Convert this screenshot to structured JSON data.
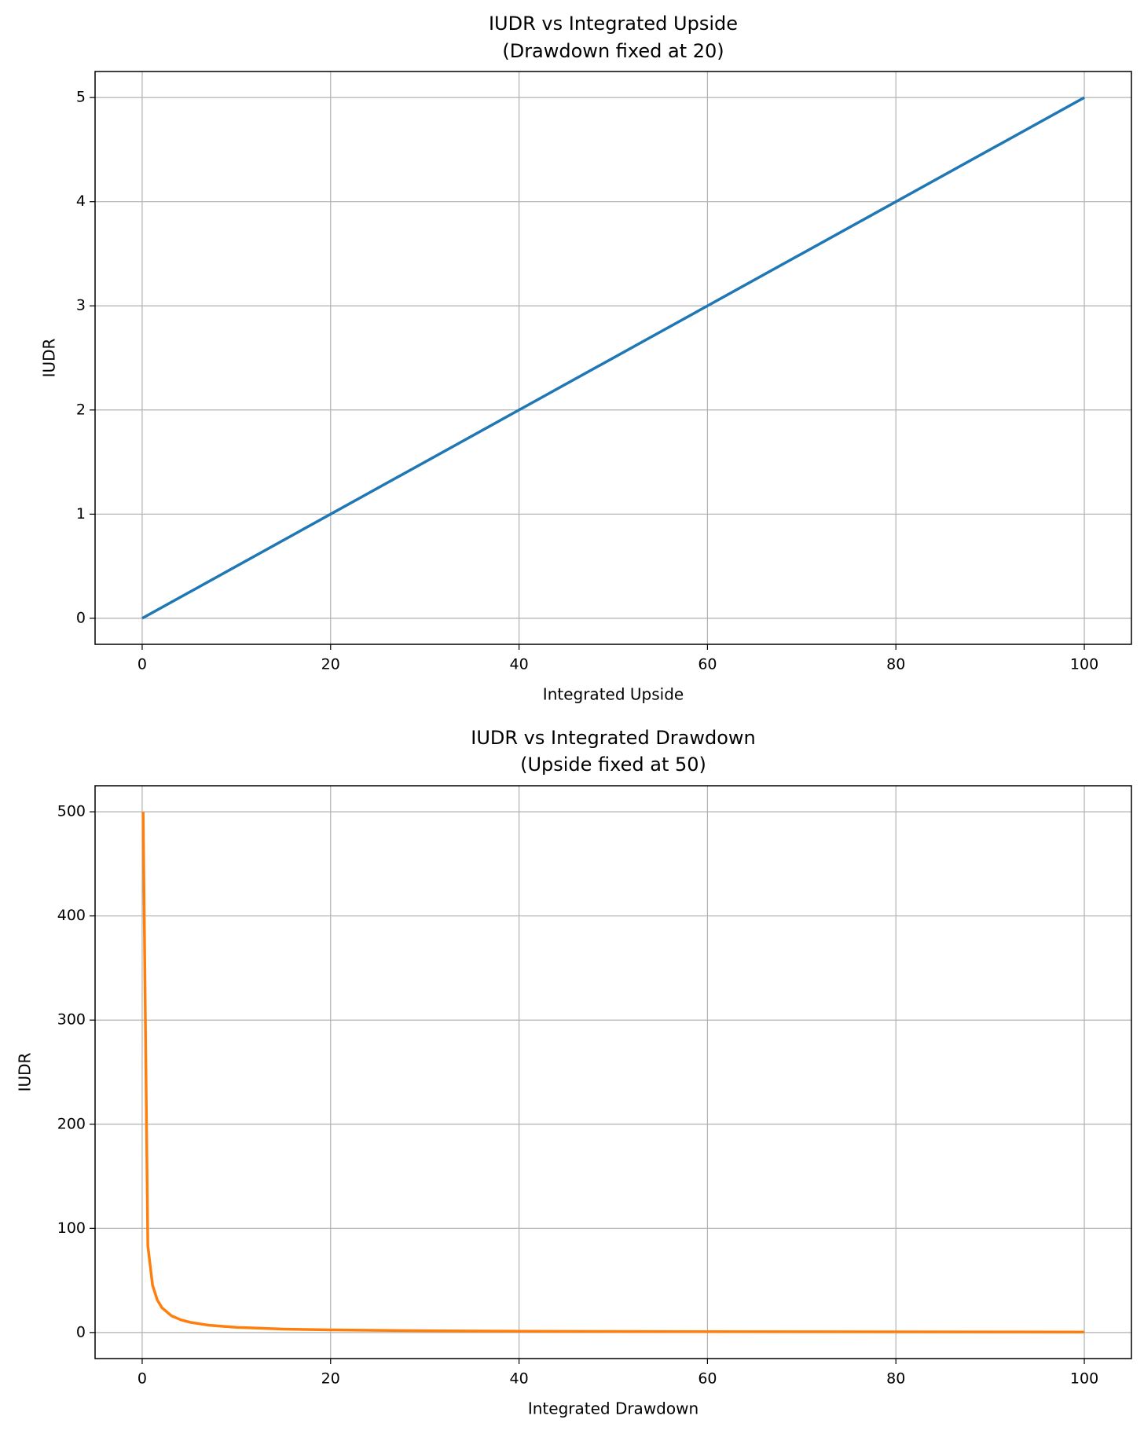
{
  "chart_data": [
    {
      "type": "line",
      "title": "IUDR vs Integrated Upside",
      "subtitle": "(Drawdown fixed at 20)",
      "x_label": "Integrated Upside",
      "y_label": "IUDR",
      "x": [
        0,
        20,
        40,
        60,
        80,
        100
      ],
      "series": [
        {
          "name": "IUDR",
          "color": "#1f77b4",
          "values": [
            0,
            1,
            2,
            3,
            4,
            5
          ]
        }
      ],
      "xlim": [
        -5,
        105
      ],
      "ylim": [
        -0.25,
        5.25
      ],
      "xticks": [
        0,
        20,
        40,
        60,
        80,
        100
      ],
      "yticks": [
        0,
        1,
        2,
        3,
        4,
        5
      ],
      "grid": true
    },
    {
      "type": "line",
      "title": "IUDR vs Integrated Drawdown",
      "subtitle": "(Upside fixed at 50)",
      "x_label": "Integrated Drawdown",
      "y_label": "IUDR",
      "x": [
        0.1,
        0.6,
        1.1,
        1.6,
        2.1,
        3.1,
        4.1,
        5.1,
        7.1,
        10,
        15,
        20,
        30,
        40,
        50,
        60,
        70,
        80,
        90,
        100
      ],
      "series": [
        {
          "name": "IUDR",
          "color": "#ff7f0e",
          "values": [
            500,
            83.3,
            45.5,
            31.3,
            23.8,
            16.1,
            12.2,
            9.8,
            7.0,
            5.0,
            3.3,
            2.5,
            1.7,
            1.25,
            1.0,
            0.83,
            0.71,
            0.63,
            0.56,
            0.5
          ]
        }
      ],
      "xlim": [
        -5,
        105
      ],
      "ylim": [
        -25,
        525
      ],
      "xticks": [
        0,
        20,
        40,
        60,
        80,
        100
      ],
      "yticks": [
        0,
        100,
        200,
        300,
        400,
        500
      ],
      "grid": true
    }
  ]
}
